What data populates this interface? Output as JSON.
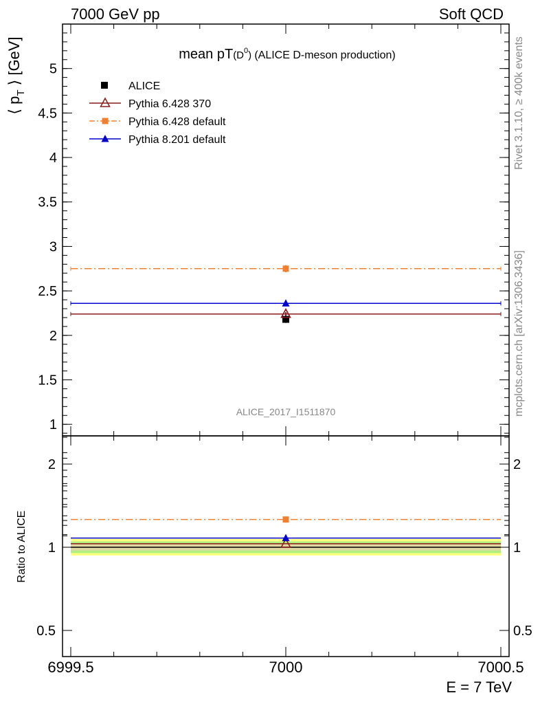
{
  "header": {
    "left": "7000 GeV pp",
    "right": "Soft QCD"
  },
  "side": {
    "rivet": "Rivet 3.1.10, ≥ 400k events",
    "mcplots": "mcplots.cern.ch [arXiv:1306.3436]"
  },
  "chart_data": {
    "type": "scatter",
    "title_main": "mean pT",
    "title_paren": "(D",
    "title_sup": "0",
    "title_close": ")",
    "title_desc": "(ALICE D-meson production)",
    "analysis_id": "ALICE_2017_I1511870",
    "xlabel": "E = 7 TeV",
    "ylabel_main": "⟨ p",
    "ylabel_sub": "T",
    "ylabel_end": "⟩ [GeV]",
    "ylabel_ratio": "Ratio to ALICE",
    "xlim": [
      6999.5,
      7000.5
    ],
    "ylim": [
      0.87,
      5.5
    ],
    "ylim_ratio": [
      0.33,
      2.3
    ],
    "x_ticks": [
      {
        "v": 6999.5,
        "label": "6999.5"
      },
      {
        "v": 7000,
        "label": "7000"
      },
      {
        "v": 7000.5,
        "label": "7000.5"
      }
    ],
    "y_ticks": [
      {
        "v": 1,
        "label": "1"
      },
      {
        "v": 1.5,
        "label": "1.5"
      },
      {
        "v": 2,
        "label": "2"
      },
      {
        "v": 2.5,
        "label": "2.5"
      },
      {
        "v": 3,
        "label": "3"
      },
      {
        "v": 3.5,
        "label": "3.5"
      },
      {
        "v": 4,
        "label": "4"
      },
      {
        "v": 4.5,
        "label": "4.5"
      },
      {
        "v": 5,
        "label": "5"
      }
    ],
    "ratio_ticks": [
      {
        "v": 0.5,
        "label": "0.5"
      },
      {
        "v": 1,
        "label": "1"
      },
      {
        "v": 2,
        "label": "2"
      }
    ],
    "data": {
      "name": "ALICE",
      "x": 7000,
      "y": 2.18,
      "err": 0.04,
      "color": "#000000"
    },
    "series": [
      {
        "name": "Pythia 6.428 370",
        "y": 2.24,
        "err": 0.02,
        "ratio": 1.03,
        "color": "#8b1a1a",
        "marker": "open-triangle",
        "dash": "solid"
      },
      {
        "name": "Pythia 6.428 default",
        "y": 2.75,
        "err": 0.04,
        "ratio": 1.26,
        "color": "#f08030",
        "marker": "square",
        "dash": "dashdot"
      },
      {
        "name": "Pythia 8.201 default",
        "y": 2.36,
        "err": 0.03,
        "ratio": 1.08,
        "color": "#0000cc",
        "marker": "filled-triangle",
        "dash": "solid"
      }
    ],
    "ratio_bands": [
      {
        "lo": 0.95,
        "hi": 1.05,
        "color": "#ffff80"
      },
      {
        "lo": 0.965,
        "hi": 1.035,
        "color": "#b0f080"
      },
      {
        "lo": 0.98,
        "hi": 1.02,
        "color": "#e0d8a0"
      }
    ]
  }
}
